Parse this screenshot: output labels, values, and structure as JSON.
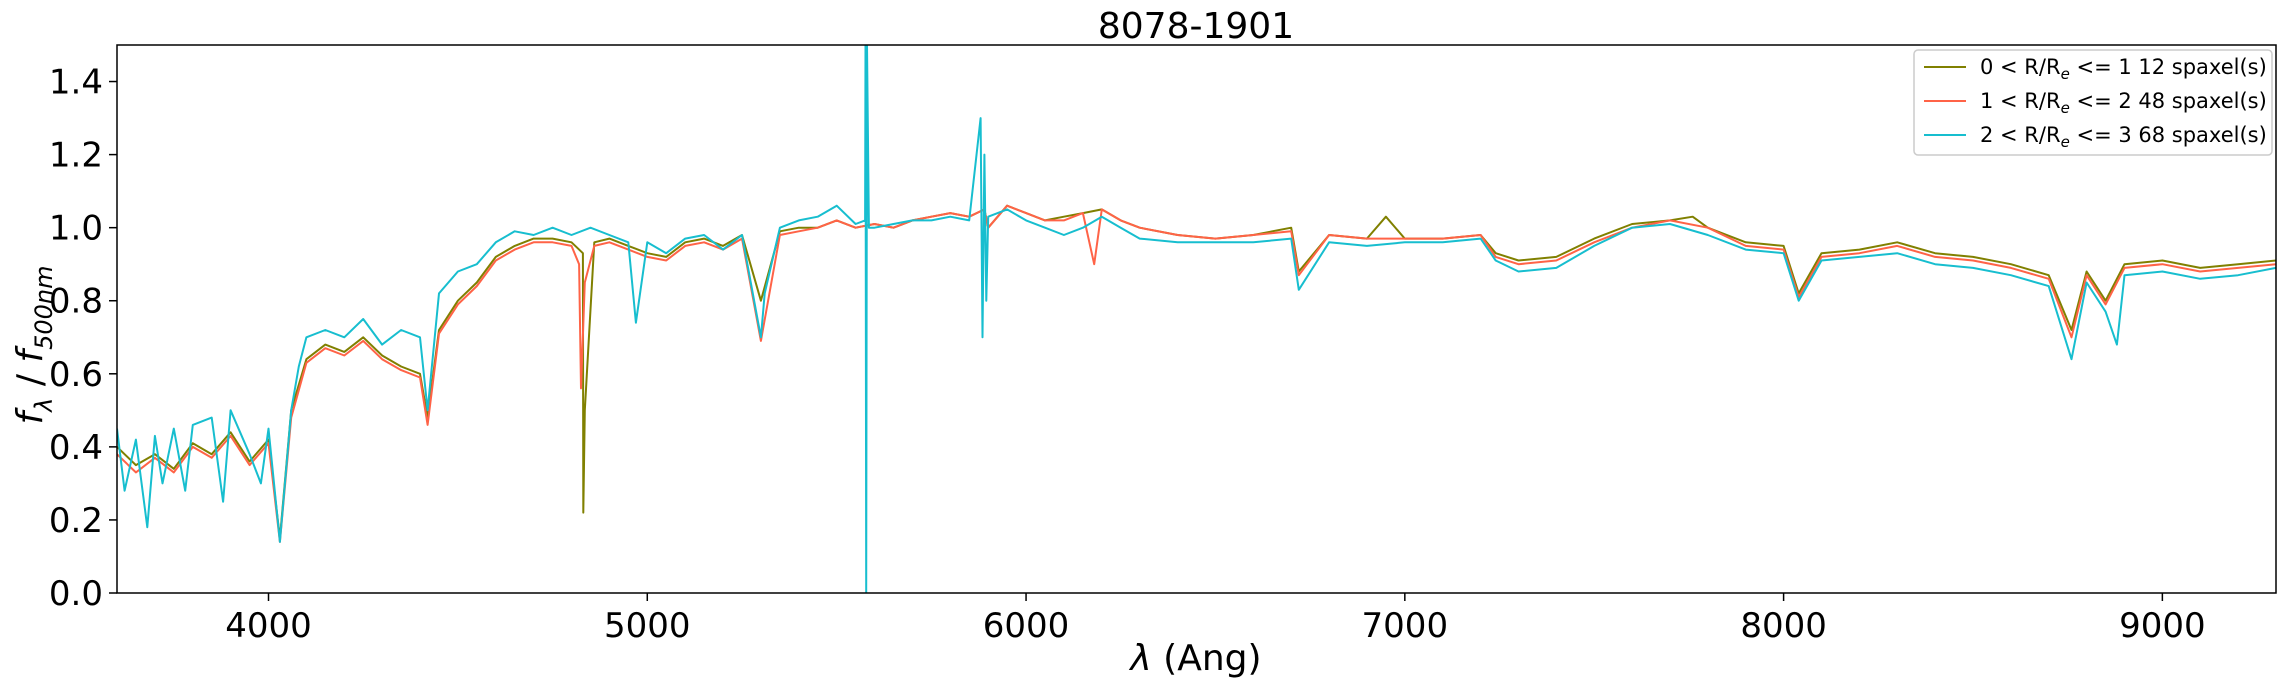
{
  "chart_data": {
    "type": "line",
    "title": "8078-1901",
    "xlabel": {
      "sym": "λ",
      "rest": " (Ang)"
    },
    "ylabel": {
      "f": "f",
      "lam": "λ",
      "sep": " / ",
      "f2": "f",
      "sub2": "500nm"
    },
    "xlim": [
      3600,
      9300
    ],
    "ylim": [
      0.0,
      1.5
    ],
    "xticks": [
      4000,
      5000,
      6000,
      7000,
      8000,
      9000
    ],
    "yticks": [
      "0.0",
      "0.2",
      "0.4",
      "0.6",
      "0.8",
      "1.0",
      "1.2",
      "1.4"
    ],
    "legend_position": "top-right",
    "series": [
      {
        "label": {
          "pre": "0 < R/R",
          "sub": "e",
          "post": " <= 1 12 spaxel(s)"
        },
        "color": "#808000",
        "x": [
          3600,
          3650,
          3700,
          3750,
          3800,
          3850,
          3900,
          3950,
          4000,
          4030,
          4060,
          4100,
          4150,
          4200,
          4250,
          4300,
          4350,
          4400,
          4420,
          4450,
          4500,
          4550,
          4600,
          4650,
          4700,
          4750,
          4800,
          4830,
          4831,
          4835,
          4860,
          4900,
          4950,
          5000,
          5050,
          5100,
          5150,
          5200,
          5250,
          5300,
          5350,
          5400,
          5450,
          5500,
          5550,
          5600,
          5650,
          5700,
          5750,
          5800,
          5850,
          5890,
          5900,
          5950,
          6000,
          6050,
          6100,
          6150,
          6200,
          6250,
          6300,
          6400,
          6500,
          6600,
          6700,
          6720,
          6800,
          6900,
          6950,
          7000,
          7100,
          7200,
          7240,
          7300,
          7400,
          7500,
          7600,
          7700,
          7760,
          7800,
          7900,
          8000,
          8040,
          8100,
          8200,
          8300,
          8400,
          8500,
          8600,
          8700,
          8760,
          8800,
          8850,
          8900,
          9000,
          9100,
          9200,
          9300
        ],
        "y": [
          0.4,
          0.35,
          0.38,
          0.34,
          0.41,
          0.38,
          0.44,
          0.36,
          0.42,
          0.15,
          0.5,
          0.64,
          0.68,
          0.66,
          0.7,
          0.65,
          0.62,
          0.6,
          0.48,
          0.72,
          0.8,
          0.85,
          0.92,
          0.95,
          0.97,
          0.97,
          0.96,
          0.93,
          0.22,
          0.5,
          0.96,
          0.97,
          0.95,
          0.93,
          0.92,
          0.96,
          0.97,
          0.95,
          0.98,
          0.8,
          0.99,
          1.0,
          1.0,
          1.02,
          1.0,
          1.01,
          1.0,
          1.02,
          1.03,
          1.04,
          1.03,
          1.05,
          1.0,
          1.06,
          1.04,
          1.02,
          1.03,
          1.04,
          1.05,
          1.02,
          1.0,
          0.98,
          0.97,
          0.98,
          1.0,
          0.88,
          0.98,
          0.97,
          1.03,
          0.97,
          0.97,
          0.98,
          0.93,
          0.91,
          0.92,
          0.97,
          1.01,
          1.02,
          1.03,
          1.0,
          0.96,
          0.95,
          0.82,
          0.93,
          0.94,
          0.96,
          0.93,
          0.92,
          0.9,
          0.87,
          0.72,
          0.88,
          0.8,
          0.9,
          0.91,
          0.89,
          0.9,
          0.91
        ]
      },
      {
        "label": {
          "pre": "1 < R/R",
          "sub": "e",
          "post": " <= 2 48 spaxel(s)"
        },
        "color": "#ff6347",
        "x": [
          3600,
          3650,
          3700,
          3750,
          3800,
          3850,
          3900,
          3950,
          4000,
          4030,
          4060,
          4100,
          4150,
          4200,
          4250,
          4300,
          4350,
          4400,
          4420,
          4450,
          4500,
          4550,
          4600,
          4650,
          4700,
          4750,
          4800,
          4820,
          4825,
          4835,
          4860,
          4900,
          4950,
          5000,
          5050,
          5100,
          5150,
          5200,
          5250,
          5300,
          5350,
          5400,
          5450,
          5500,
          5550,
          5600,
          5650,
          5700,
          5750,
          5800,
          5850,
          5890,
          5900,
          5950,
          6000,
          6050,
          6100,
          6150,
          6180,
          6200,
          6250,
          6300,
          6400,
          6500,
          6600,
          6700,
          6720,
          6800,
          6900,
          7000,
          7100,
          7200,
          7240,
          7300,
          7400,
          7500,
          7600,
          7700,
          7800,
          7900,
          8000,
          8040,
          8100,
          8200,
          8300,
          8400,
          8500,
          8600,
          8700,
          8760,
          8800,
          8850,
          8900,
          9000,
          9100,
          9200,
          9300
        ],
        "y": [
          0.38,
          0.33,
          0.37,
          0.33,
          0.4,
          0.37,
          0.43,
          0.35,
          0.41,
          0.14,
          0.48,
          0.63,
          0.67,
          0.65,
          0.69,
          0.64,
          0.61,
          0.59,
          0.46,
          0.71,
          0.79,
          0.84,
          0.91,
          0.94,
          0.96,
          0.96,
          0.95,
          0.9,
          0.56,
          0.85,
          0.95,
          0.96,
          0.94,
          0.92,
          0.91,
          0.95,
          0.96,
          0.94,
          0.97,
          0.69,
          0.98,
          0.99,
          1.0,
          1.02,
          1.0,
          1.01,
          1.0,
          1.02,
          1.03,
          1.04,
          1.03,
          1.05,
          1.0,
          1.06,
          1.04,
          1.02,
          1.02,
          1.04,
          0.9,
          1.05,
          1.02,
          1.0,
          0.98,
          0.97,
          0.98,
          0.99,
          0.87,
          0.98,
          0.97,
          0.97,
          0.97,
          0.98,
          0.92,
          0.9,
          0.91,
          0.96,
          1.0,
          1.02,
          1.0,
          0.95,
          0.94,
          0.81,
          0.92,
          0.93,
          0.95,
          0.92,
          0.91,
          0.89,
          0.86,
          0.7,
          0.87,
          0.79,
          0.89,
          0.9,
          0.88,
          0.89,
          0.9
        ]
      },
      {
        "label": {
          "pre": "2 < R/R",
          "sub": "e",
          "post": " <= 3 68 spaxel(s)"
        },
        "color": "#17becf",
        "x": [
          3600,
          3620,
          3650,
          3680,
          3700,
          3720,
          3750,
          3780,
          3800,
          3850,
          3880,
          3900,
          3950,
          3980,
          4000,
          4030,
          4060,
          4080,
          4100,
          4150,
          4200,
          4250,
          4300,
          4350,
          4400,
          4420,
          4450,
          4500,
          4550,
          4600,
          4650,
          4700,
          4750,
          4800,
          4850,
          4900,
          4950,
          4970,
          5000,
          5050,
          5100,
          5150,
          5200,
          5250,
          5300,
          5310,
          5350,
          5400,
          5450,
          5500,
          5550,
          5575,
          5576,
          5578,
          5580,
          5585,
          5600,
          5650,
          5700,
          5750,
          5800,
          5850,
          5880,
          5885,
          5890,
          5895,
          5900,
          5950,
          6000,
          6050,
          6100,
          6150,
          6200,
          6250,
          6300,
          6400,
          6500,
          6600,
          6700,
          6720,
          6800,
          6900,
          7000,
          7100,
          7200,
          7240,
          7300,
          7400,
          7500,
          7600,
          7700,
          7800,
          7900,
          8000,
          8040,
          8100,
          8200,
          8300,
          8400,
          8500,
          8600,
          8700,
          8760,
          8800,
          8850,
          8880,
          8900,
          9000,
          9100,
          9200,
          9300
        ],
        "y": [
          0.45,
          0.28,
          0.42,
          0.18,
          0.43,
          0.3,
          0.45,
          0.28,
          0.46,
          0.48,
          0.25,
          0.5,
          0.38,
          0.3,
          0.45,
          0.14,
          0.5,
          0.62,
          0.7,
          0.72,
          0.7,
          0.75,
          0.68,
          0.72,
          0.7,
          0.5,
          0.82,
          0.88,
          0.9,
          0.96,
          0.99,
          0.98,
          1.0,
          0.98,
          1.0,
          0.98,
          0.96,
          0.74,
          0.96,
          0.93,
          0.97,
          0.98,
          0.94,
          0.98,
          0.7,
          0.82,
          1.0,
          1.02,
          1.03,
          1.06,
          1.01,
          1.02,
          1.5,
          0.0,
          1.5,
          1.0,
          1.0,
          1.01,
          1.02,
          1.02,
          1.03,
          1.02,
          1.3,
          0.7,
          1.2,
          0.8,
          1.03,
          1.05,
          1.02,
          1.0,
          0.98,
          1.0,
          1.03,
          1.0,
          0.97,
          0.96,
          0.96,
          0.96,
          0.97,
          0.83,
          0.96,
          0.95,
          0.96,
          0.96,
          0.97,
          0.91,
          0.88,
          0.89,
          0.95,
          1.0,
          1.01,
          0.98,
          0.94,
          0.93,
          0.8,
          0.91,
          0.92,
          0.93,
          0.9,
          0.89,
          0.87,
          0.84,
          0.64,
          0.85,
          0.77,
          0.68,
          0.87,
          0.88,
          0.86,
          0.87,
          0.89
        ]
      }
    ]
  }
}
